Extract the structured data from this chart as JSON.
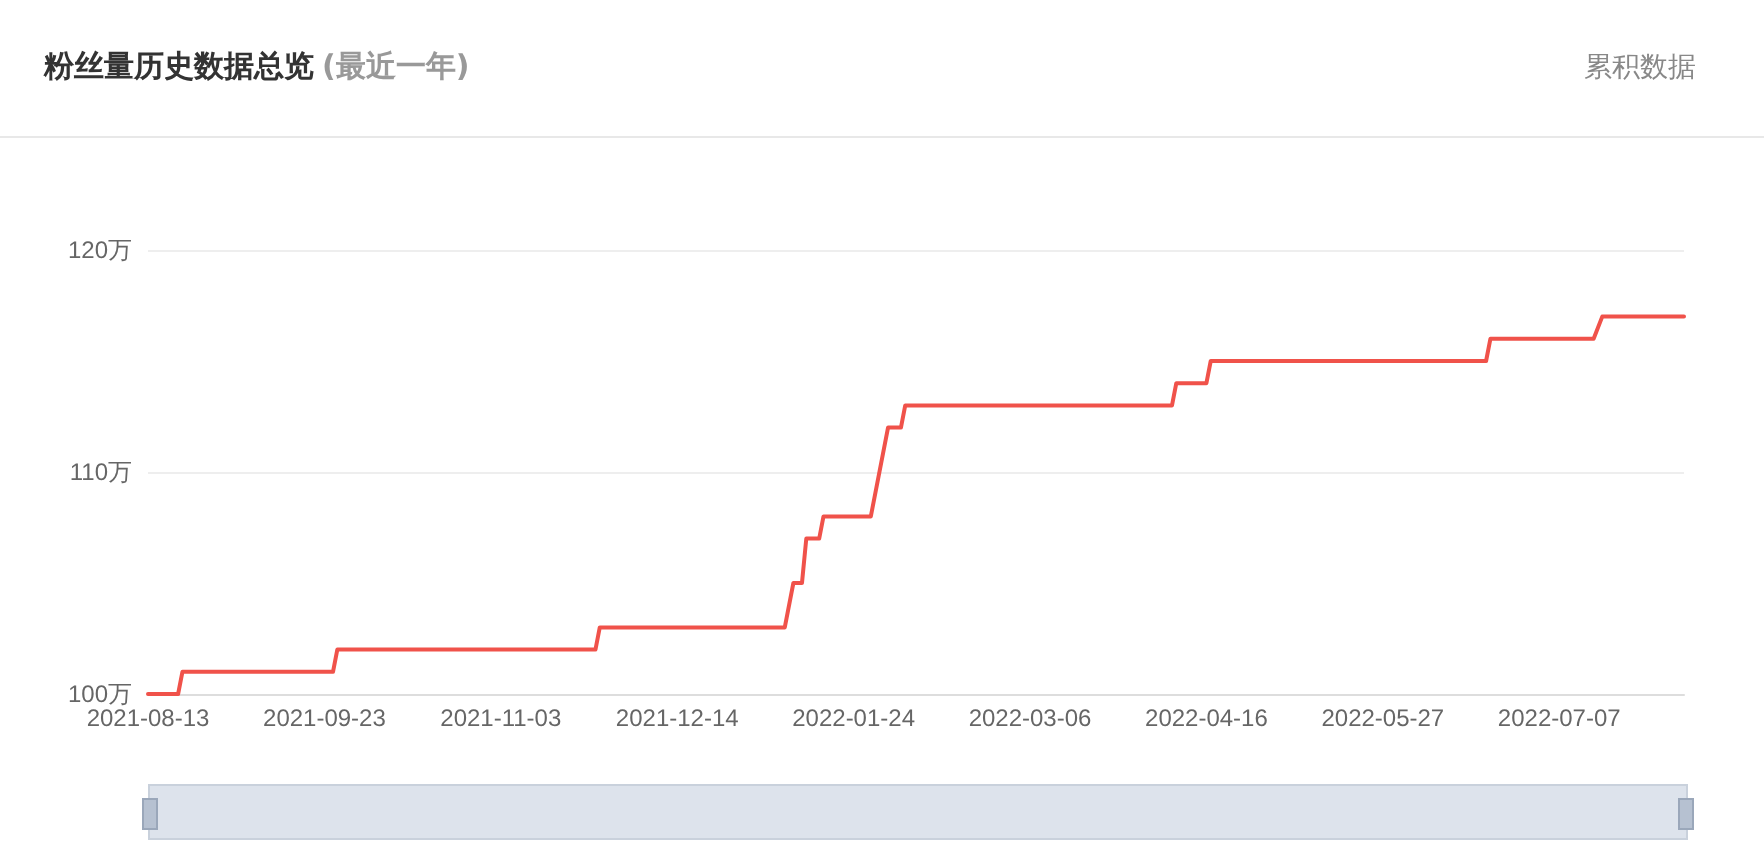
{
  "chart_data": {
    "type": "line",
    "title": "粉丝量历史数据总览",
    "subtitle": "(最近一年)",
    "annotations": [
      "累积数据"
    ],
    "series": [
      {
        "color": "#f0524a",
        "x": [
          "2021-08-13",
          "2021-08-20",
          "2021-08-21",
          "2021-09-25",
          "2021-09-26",
          "2021-11-25",
          "2021-11-26",
          "2022-01-08",
          "2022-01-10",
          "2022-01-12",
          "2022-01-13",
          "2022-01-16",
          "2022-01-17",
          "2022-01-28",
          "2022-02-01",
          "2022-02-04",
          "2022-02-05",
          "2022-04-08",
          "2022-04-09",
          "2022-04-16",
          "2022-04-17",
          "2022-06-20",
          "2022-06-21",
          "2022-07-15",
          "2022-07-17",
          "2022-08-05"
        ],
        "values": [
          100,
          100,
          101,
          101,
          102,
          102,
          103,
          103,
          105,
          105,
          107,
          107,
          108,
          108,
          112,
          112,
          113,
          113,
          114,
          114,
          115,
          115,
          116,
          116,
          117,
          117
        ]
      }
    ],
    "xlim": [
      "2021-08-13",
      "2022-08-05"
    ],
    "xticks": [
      "2021-08-13",
      "2021-09-23",
      "2021-11-03",
      "2021-12-14",
      "2022-01-24",
      "2022-03-06",
      "2022-04-16",
      "2022-05-27",
      "2022-07-07"
    ],
    "ylim": [
      100,
      120
    ],
    "yticks": [
      {
        "value": 100,
        "label": "100万"
      },
      {
        "value": 110,
        "label": "110万"
      },
      {
        "value": 120,
        "label": "120万"
      }
    ],
    "grid": "y",
    "marker": "none",
    "line_style": "solid"
  }
}
